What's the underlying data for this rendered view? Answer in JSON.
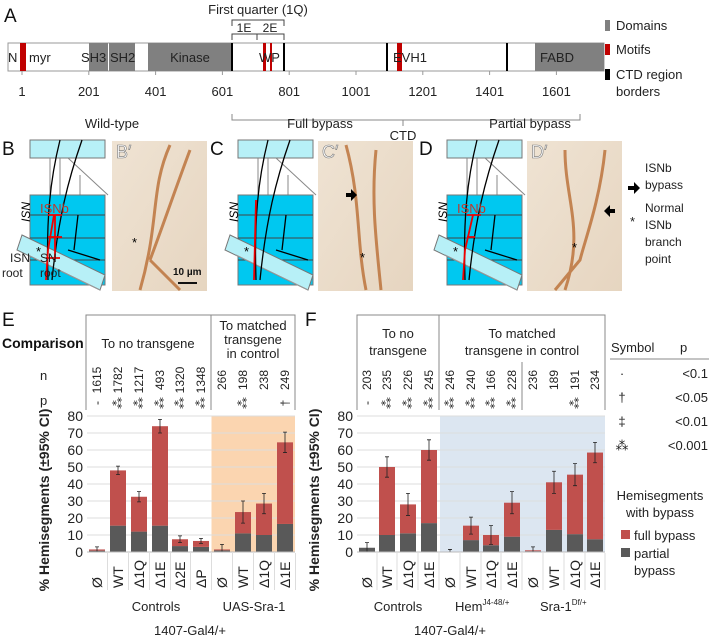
{
  "panelA": {
    "letter": "A",
    "first_quarter": "First quarter (1Q)",
    "e1": "1E",
    "e2": "2E",
    "labels": {
      "n": "N",
      "myr": "myr",
      "sh3": "SH3",
      "sh2": "SH2",
      "kinase": "Kinase",
      "wp": "WP",
      "evh1": "EVH1",
      "fabd": "FABD"
    },
    "ticks": [
      "1",
      "201",
      "401",
      "601",
      "801",
      "1001",
      "1201",
      "1401",
      "1601"
    ],
    "ctd": "CTD",
    "legend": {
      "domains": "Domains",
      "motifs": "Motifs",
      "borders1": "CTD region",
      "borders2": "borders"
    },
    "colors": {
      "domain": "#808080",
      "motif": "#c00000",
      "border": "#000000"
    }
  },
  "panelsBD": {
    "titles": [
      "Wild-type",
      "Full bypass",
      "Partial bypass"
    ],
    "letters": [
      "B",
      "B′",
      "C",
      "C′",
      "D",
      "D′"
    ],
    "isn": "ISN",
    "isnb": "ISNb",
    "asterisk": "*",
    "isn_root": [
      "ISN",
      "root"
    ],
    "sn_root": [
      "SN",
      "root"
    ],
    "scale": "10 µm",
    "legend": {
      "bypass": [
        "ISNb",
        "bypass"
      ],
      "normal": [
        "Normal",
        "ISNb",
        "branch",
        "point"
      ]
    }
  },
  "panelE": {
    "letter": "E",
    "comparison": "Comparison",
    "n_label": "n",
    "p_label": "p",
    "group1": "To no transgene",
    "group2": [
      "To matched",
      "transgene",
      "in control"
    ],
    "n": [
      "1615",
      "1782",
      "1217",
      "493",
      "1320",
      "1348",
      "266",
      "198",
      "238",
      "249"
    ],
    "p": [
      "-",
      "⁂",
      "⁂",
      "⁂",
      "⁂",
      "⁂",
      "",
      "⁂",
      "",
      "†"
    ],
    "groups": [
      "Controls",
      "UAS-Sra-1"
    ],
    "genotype": "1407-Gal4/+"
  },
  "panelF": {
    "letter": "F",
    "group1": [
      "To no",
      "transgene"
    ],
    "group2": "To matched",
    "group2b": "transgene in control",
    "n": [
      "203",
      "235",
      "226",
      "245",
      "246",
      "240",
      "166",
      "228",
      "236",
      "189",
      "191",
      "234"
    ],
    "p": [
      "-",
      "⁂",
      "⁂",
      "⁂",
      "⁂",
      "⁂",
      "⁂",
      "⁂",
      "",
      "",
      "⁂",
      ""
    ],
    "groups": [
      "Controls",
      "Hem",
      "J4-48/+",
      "Sra-1",
      "Df/+"
    ],
    "genotype": "1407-Gal4/+"
  },
  "symbols": {
    "header": [
      "Symbol",
      "p"
    ],
    "rows": [
      [
        "·",
        "<0.1"
      ],
      [
        "†",
        "<0.05"
      ],
      [
        "‡",
        "<0.01"
      ],
      [
        "⁂",
        "<0.001"
      ]
    ]
  },
  "legend": {
    "title": [
      "Hemisegments",
      "with bypass"
    ],
    "full": "full bypass",
    "partial": [
      "partial",
      "bypass"
    ]
  },
  "chart_data": [
    {
      "type": "bar",
      "stacked": true,
      "title": "E",
      "ylabel": "% Hemisegments (±95% CI)",
      "ylim": [
        0,
        80
      ],
      "yticks": [
        "0",
        "10",
        "20",
        "30",
        "40",
        "50",
        "60",
        "70",
        "80"
      ],
      "categories": [
        "Ø",
        "WT",
        "Δ1Q",
        "Δ1E",
        "Δ2E",
        "ΔP",
        "Ø",
        "WT",
        "Δ1Q",
        "Δ1E"
      ],
      "series": [
        {
          "name": "partial bypass",
          "color": "#595959",
          "values": [
            0.8,
            15.5,
            12,
            15.5,
            3.5,
            3,
            1,
            11,
            10,
            16.5
          ]
        },
        {
          "name": "full bypass",
          "color": "#c0504d",
          "values": [
            0.7,
            32.5,
            20.5,
            58.5,
            4,
            3.5,
            0.5,
            12.5,
            18.5,
            48
          ]
        }
      ],
      "totals": [
        1.5,
        48,
        32.5,
        74,
        7.5,
        6.5,
        1.5,
        23.5,
        28.5,
        64.5
      ],
      "ci": [
        1.5,
        2.5,
        3,
        4,
        2,
        1.5,
        3,
        6.5,
        6,
        6
      ],
      "shaded_from": 6,
      "shade_color": "#fbd5b0"
    },
    {
      "type": "bar",
      "stacked": true,
      "title": "F",
      "ylabel": "% Hemisegments (±95% CI)",
      "ylim": [
        0,
        80
      ],
      "yticks": [
        "0",
        "10",
        "20",
        "30",
        "40",
        "50",
        "60",
        "70",
        "80"
      ],
      "categories": [
        "Ø",
        "WT",
        "Δ1Q",
        "Δ1E",
        "Ø",
        "WT",
        "Δ1Q",
        "Δ1E",
        "Ø",
        "WT",
        "Δ1Q",
        "Δ1E"
      ],
      "series": [
        {
          "name": "partial bypass",
          "color": "#595959",
          "values": [
            2.5,
            10,
            11,
            17,
            0,
            7,
            4,
            9,
            0.5,
            13,
            10.5,
            7.5
          ]
        },
        {
          "name": "full bypass",
          "color": "#c0504d",
          "values": [
            0,
            40,
            17,
            43,
            0,
            8.5,
            6,
            20,
            0.5,
            28,
            35,
            51
          ]
        }
      ],
      "totals": [
        2.5,
        50,
        28,
        60,
        0,
        15.5,
        10,
        29,
        1,
        41,
        45.5,
        58.5
      ],
      "ci": [
        3,
        6,
        6.5,
        6,
        1.5,
        5,
        5.5,
        6.5,
        2,
        6.5,
        6.5,
        6
      ],
      "shaded_from": 4,
      "shade_color": "#dce6f1"
    }
  ]
}
